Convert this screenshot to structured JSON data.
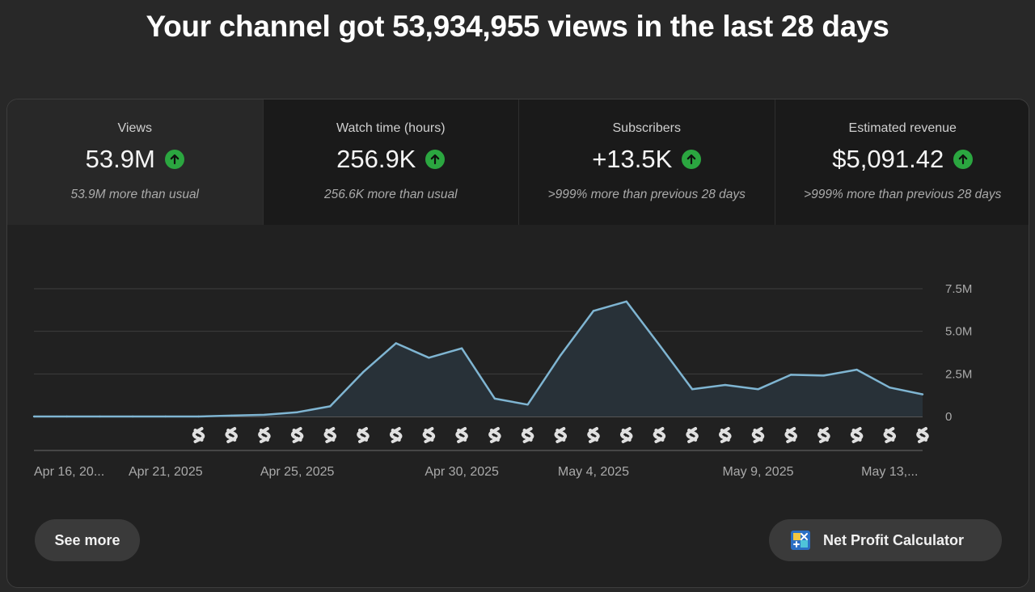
{
  "headline": "Your channel got 53,934,955 views in the last 28 days",
  "metrics": [
    {
      "label": "Views",
      "value": "53.9M",
      "note": "53.9M more than usual",
      "active": true
    },
    {
      "label": "Watch time (hours)",
      "value": "256.9K",
      "note": "256.6K more than usual",
      "active": false
    },
    {
      "label": "Subscribers",
      "value": "+13.5K",
      "note": ">999% more than previous 28 days",
      "active": false
    },
    {
      "label": "Estimated revenue",
      "value": "$5,091.42",
      "note": ">999% more than previous 28 days",
      "active": false
    }
  ],
  "trend_icon": "arrow-up-icon",
  "colors": {
    "up": "#2ba640",
    "line": "#7fb5d2",
    "area": "#283138"
  },
  "chart_data": {
    "type": "area",
    "x": [
      "2025-04-16",
      "2025-04-17",
      "2025-04-18",
      "2025-04-19",
      "2025-04-20",
      "2025-04-21",
      "2025-04-22",
      "2025-04-23",
      "2025-04-24",
      "2025-04-25",
      "2025-04-26",
      "2025-04-27",
      "2025-04-28",
      "2025-04-29",
      "2025-04-30",
      "2025-05-01",
      "2025-05-02",
      "2025-05-03",
      "2025-05-04",
      "2025-05-05",
      "2025-05-06",
      "2025-05-07",
      "2025-05-08",
      "2025-05-09",
      "2025-05-10",
      "2025-05-11",
      "2025-05-12",
      "2025-05-13"
    ],
    "values": [
      0.0,
      0.0,
      0.0,
      0.0,
      0.0,
      0.0,
      0.05,
      0.1,
      0.25,
      0.6,
      2.6,
      4.3,
      3.45,
      4.0,
      1.05,
      0.7,
      3.6,
      6.2,
      6.75,
      4.2,
      1.6,
      1.85,
      1.6,
      2.45,
      2.4,
      2.75,
      1.7,
      1.3
    ],
    "y_unit": "M",
    "ylim": [
      0,
      7.5
    ],
    "y_ticks": [
      "7.5M",
      "5.0M",
      "2.5M",
      "0"
    ],
    "x_tick_labels": [
      {
        "label": "Apr 16, 20...",
        "date": "2025-04-16"
      },
      {
        "label": "Apr 21, 2025",
        "date": "2025-04-20"
      },
      {
        "label": "Apr 25, 2025",
        "date": "2025-04-24"
      },
      {
        "label": "Apr 30, 2025",
        "date": "2025-04-29"
      },
      {
        "label": "May 4, 2025",
        "date": "2025-05-03"
      },
      {
        "label": "May 9, 2025",
        "date": "2025-05-08"
      },
      {
        "label": "May 13,...",
        "date": "2025-05-12"
      }
    ],
    "shorts_marker_dates": [
      "2025-04-21",
      "2025-04-22",
      "2025-04-23",
      "2025-04-24",
      "2025-04-25",
      "2025-04-26",
      "2025-04-27",
      "2025-04-28",
      "2025-04-29",
      "2025-04-30",
      "2025-05-01",
      "2025-05-02",
      "2025-05-03",
      "2025-05-04",
      "2025-05-05",
      "2025-05-06",
      "2025-05-07",
      "2025-05-08",
      "2025-05-09",
      "2025-05-10",
      "2025-05-11",
      "2025-05-12",
      "2025-05-13"
    ],
    "marker_icon": "shorts-icon",
    "grid": true
  },
  "buttons": {
    "see_more": "See more",
    "calculator": "Net Profit Calculator",
    "calculator_icon": "calculator-logo-icon"
  }
}
